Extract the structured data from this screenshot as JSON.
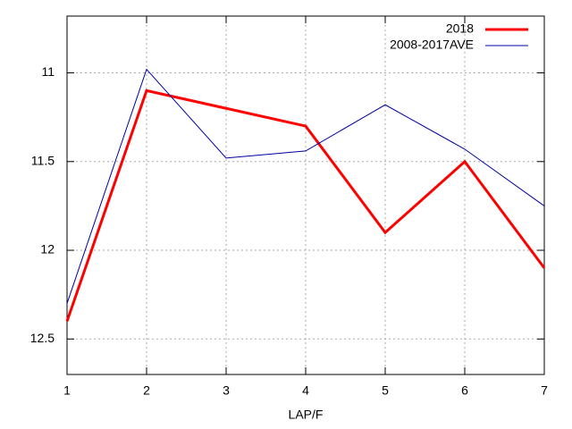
{
  "chart_data": {
    "type": "line",
    "x_label": "LAP/F",
    "x": [
      1,
      2,
      3,
      4,
      5,
      6,
      7
    ],
    "xlim": [
      1,
      7
    ],
    "xticks": [
      1,
      2,
      3,
      4,
      5,
      6,
      7
    ],
    "ylim": [
      12.7,
      10.68
    ],
    "yticks": [
      11,
      11.5,
      12,
      12.5
    ],
    "grid": true,
    "legend": "top-right",
    "series": [
      {
        "name": "2018",
        "color": "#ff0000",
        "width": 3,
        "values": [
          12.4,
          11.1,
          11.2,
          11.3,
          11.9,
          11.5,
          12.1
        ]
      },
      {
        "name": "2008-2017AVE",
        "color": "#0000a0",
        "width": 1,
        "values": [
          12.3,
          10.98,
          11.48,
          11.44,
          11.18,
          11.43,
          11.75
        ]
      }
    ]
  }
}
